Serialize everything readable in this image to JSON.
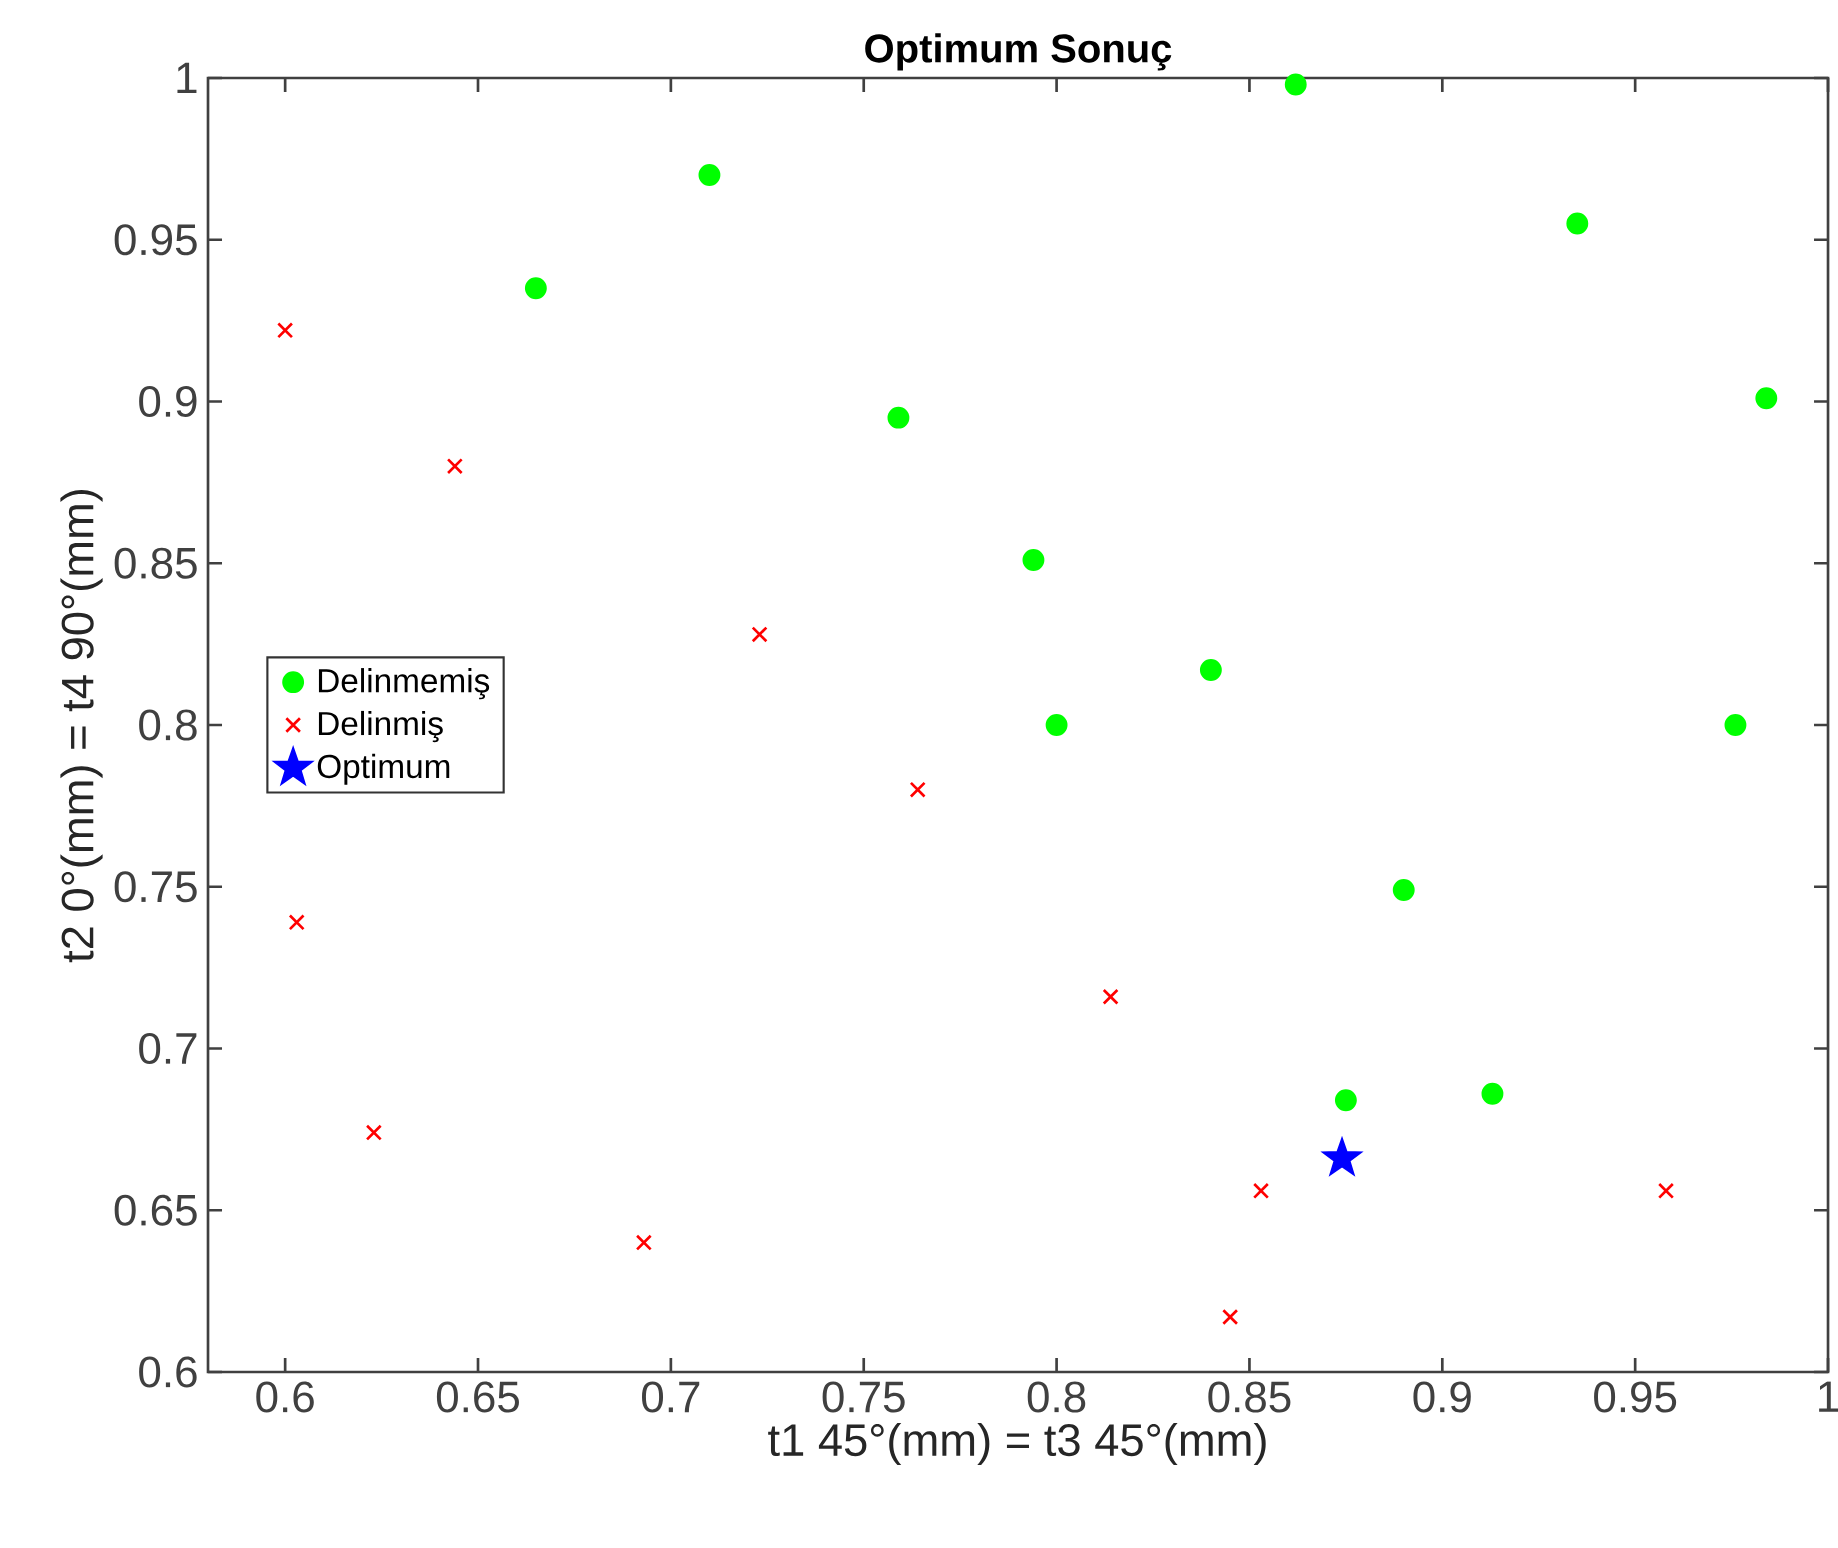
{
  "chart_data": {
    "type": "scatter",
    "title": "Optimum Sonuç",
    "xlabel": "t1 45°(mm) = t3 45°(mm)",
    "ylabel": "t2 0°(mm) = t4 90°(mm)",
    "xlim": [
      0.58,
      1
    ],
    "ylim": [
      0.6,
      1
    ],
    "xticks": [
      0.6,
      0.65,
      0.7,
      0.75,
      0.8,
      0.85,
      0.9,
      0.95,
      1
    ],
    "yticks": [
      0.6,
      0.65,
      0.7,
      0.75,
      0.8,
      0.85,
      0.9,
      0.95,
      1
    ],
    "grid": false,
    "legend": "left",
    "series": [
      {
        "name": "Delinmemiş",
        "color": "#00ff00",
        "marker": "circle",
        "x": [
          0.862,
          0.71,
          0.665,
          0.759,
          0.794,
          0.84,
          0.8,
          0.935,
          0.984,
          0.976,
          0.89,
          0.875,
          0.913
        ],
        "values": [
          0.998,
          0.97,
          0.935,
          0.895,
          0.851,
          0.817,
          0.8,
          0.955,
          0.901,
          0.8,
          0.749,
          0.684,
          0.686
        ]
      },
      {
        "name": "Delinmiş",
        "color": "#ff0000",
        "marker": "cross",
        "x": [
          0.6,
          0.644,
          0.723,
          0.764,
          0.603,
          0.623,
          0.693,
          0.814,
          0.853,
          0.845,
          0.958
        ],
        "values": [
          0.922,
          0.88,
          0.828,
          0.78,
          0.739,
          0.674,
          0.64,
          0.716,
          0.656,
          0.617,
          0.656
        ]
      },
      {
        "name": "Optimum",
        "color": "#0000ff",
        "marker": "star",
        "x": [
          0.874
        ],
        "values": [
          0.666
        ]
      }
    ]
  }
}
